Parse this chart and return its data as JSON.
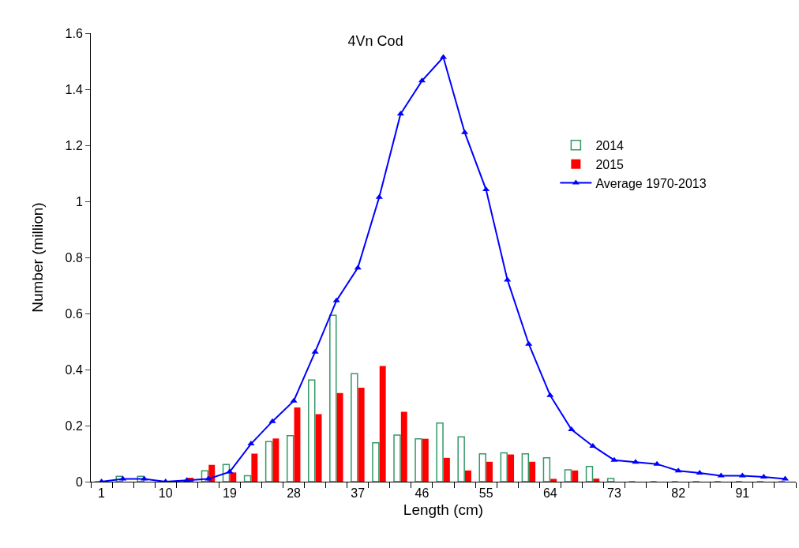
{
  "chart_data": {
    "type": "bar",
    "title": "4Vn Cod",
    "xlabel": "Length (cm)",
    "ylabel": "Number (million)",
    "categories": [
      "1",
      null,
      null,
      "10",
      null,
      null,
      "19",
      null,
      null,
      "28",
      null,
      null,
      "37",
      null,
      null,
      "46",
      null,
      null,
      "55",
      null,
      null,
      "64",
      null,
      null,
      "73",
      null,
      null,
      "82",
      null,
      null,
      "91",
      null,
      null
    ],
    "series": [
      {
        "name": "2014",
        "color": "#339966",
        "values": [
          0,
          0.019,
          0.019,
          0,
          0,
          0.039,
          0.061,
          0.021,
          0.143,
          0.164,
          0.363,
          0.594,
          0.385,
          0.139,
          0.166,
          0.153,
          0.209,
          0.16,
          0.099,
          0.103,
          0.099,
          0.085,
          0.042,
          0.054,
          0.011,
          0,
          0,
          0,
          0,
          0,
          0,
          0,
          0
        ]
      },
      {
        "name": "2015",
        "color": "#ff0000",
        "values": [
          0,
          0,
          0,
          0,
          0.014,
          0.06,
          0.033,
          0.1,
          0.154,
          0.265,
          0.241,
          0.316,
          0.335,
          0.413,
          0.249,
          0.153,
          0.085,
          0.04,
          0.071,
          0.097,
          0.071,
          0.01,
          0.04,
          0.011,
          0,
          0,
          0,
          0,
          0,
          0,
          0,
          0,
          0
        ]
      },
      {
        "name": "Average 1970-2013",
        "type": "line",
        "color": "#0000ff",
        "marker": "triangle",
        "line_style": "solid",
        "values": [
          0,
          0.01,
          0.01,
          0,
          0.005,
          0.01,
          0.035,
          0.135,
          0.215,
          0.288,
          0.463,
          0.646,
          0.763,
          1.015,
          1.312,
          1.43,
          1.514,
          1.246,
          1.042,
          0.72,
          0.491,
          0.308,
          0.186,
          0.127,
          0.077,
          0.07,
          0.063,
          0.039,
          0.031,
          0.021,
          0.021,
          0.017,
          0.01
        ]
      }
    ],
    "ylim": [
      0,
      1.6
    ],
    "yticks": [
      0,
      0.2,
      0.4,
      0.6,
      0.8,
      1,
      1.2,
      1.4,
      1.6
    ],
    "grid": false,
    "legend": "right"
  }
}
